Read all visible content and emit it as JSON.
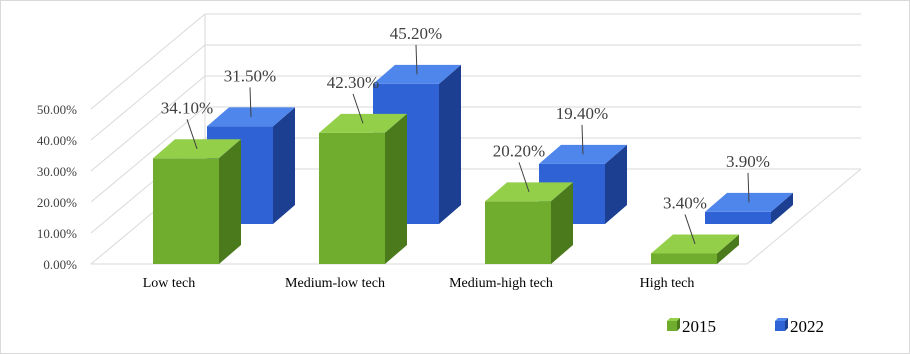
{
  "chart_data": {
    "type": "bar",
    "style": "3d-clustered-column",
    "categories": [
      "Low tech",
      "Medium-low tech",
      "Medium-high tech",
      "High tech"
    ],
    "series": [
      {
        "name": "2015",
        "values": [
          34.1,
          42.3,
          20.2,
          3.4
        ],
        "labels": [
          "34.10%",
          "42.30%",
          "20.20%",
          "3.40%"
        ]
      },
      {
        "name": "2022",
        "values": [
          31.5,
          45.2,
          19.4,
          3.9
        ],
        "labels": [
          "31.50%",
          "45.20%",
          "19.40%",
          "3.90%"
        ]
      }
    ],
    "yticks": [
      "0.00%",
      "10.00%",
      "20.00%",
      "30.00%",
      "40.00%",
      "50.00%"
    ],
    "ylim": [
      0,
      50
    ],
    "grid": true,
    "legend_position": "bottom-right",
    "colors": {
      "2015": {
        "front": "#70ad2f",
        "top": "#94cf4a",
        "side": "#4b7a1c"
      },
      "2022": {
        "front": "#2f62d4",
        "top": "#4f86ec",
        "side": "#1c3f92"
      }
    }
  }
}
